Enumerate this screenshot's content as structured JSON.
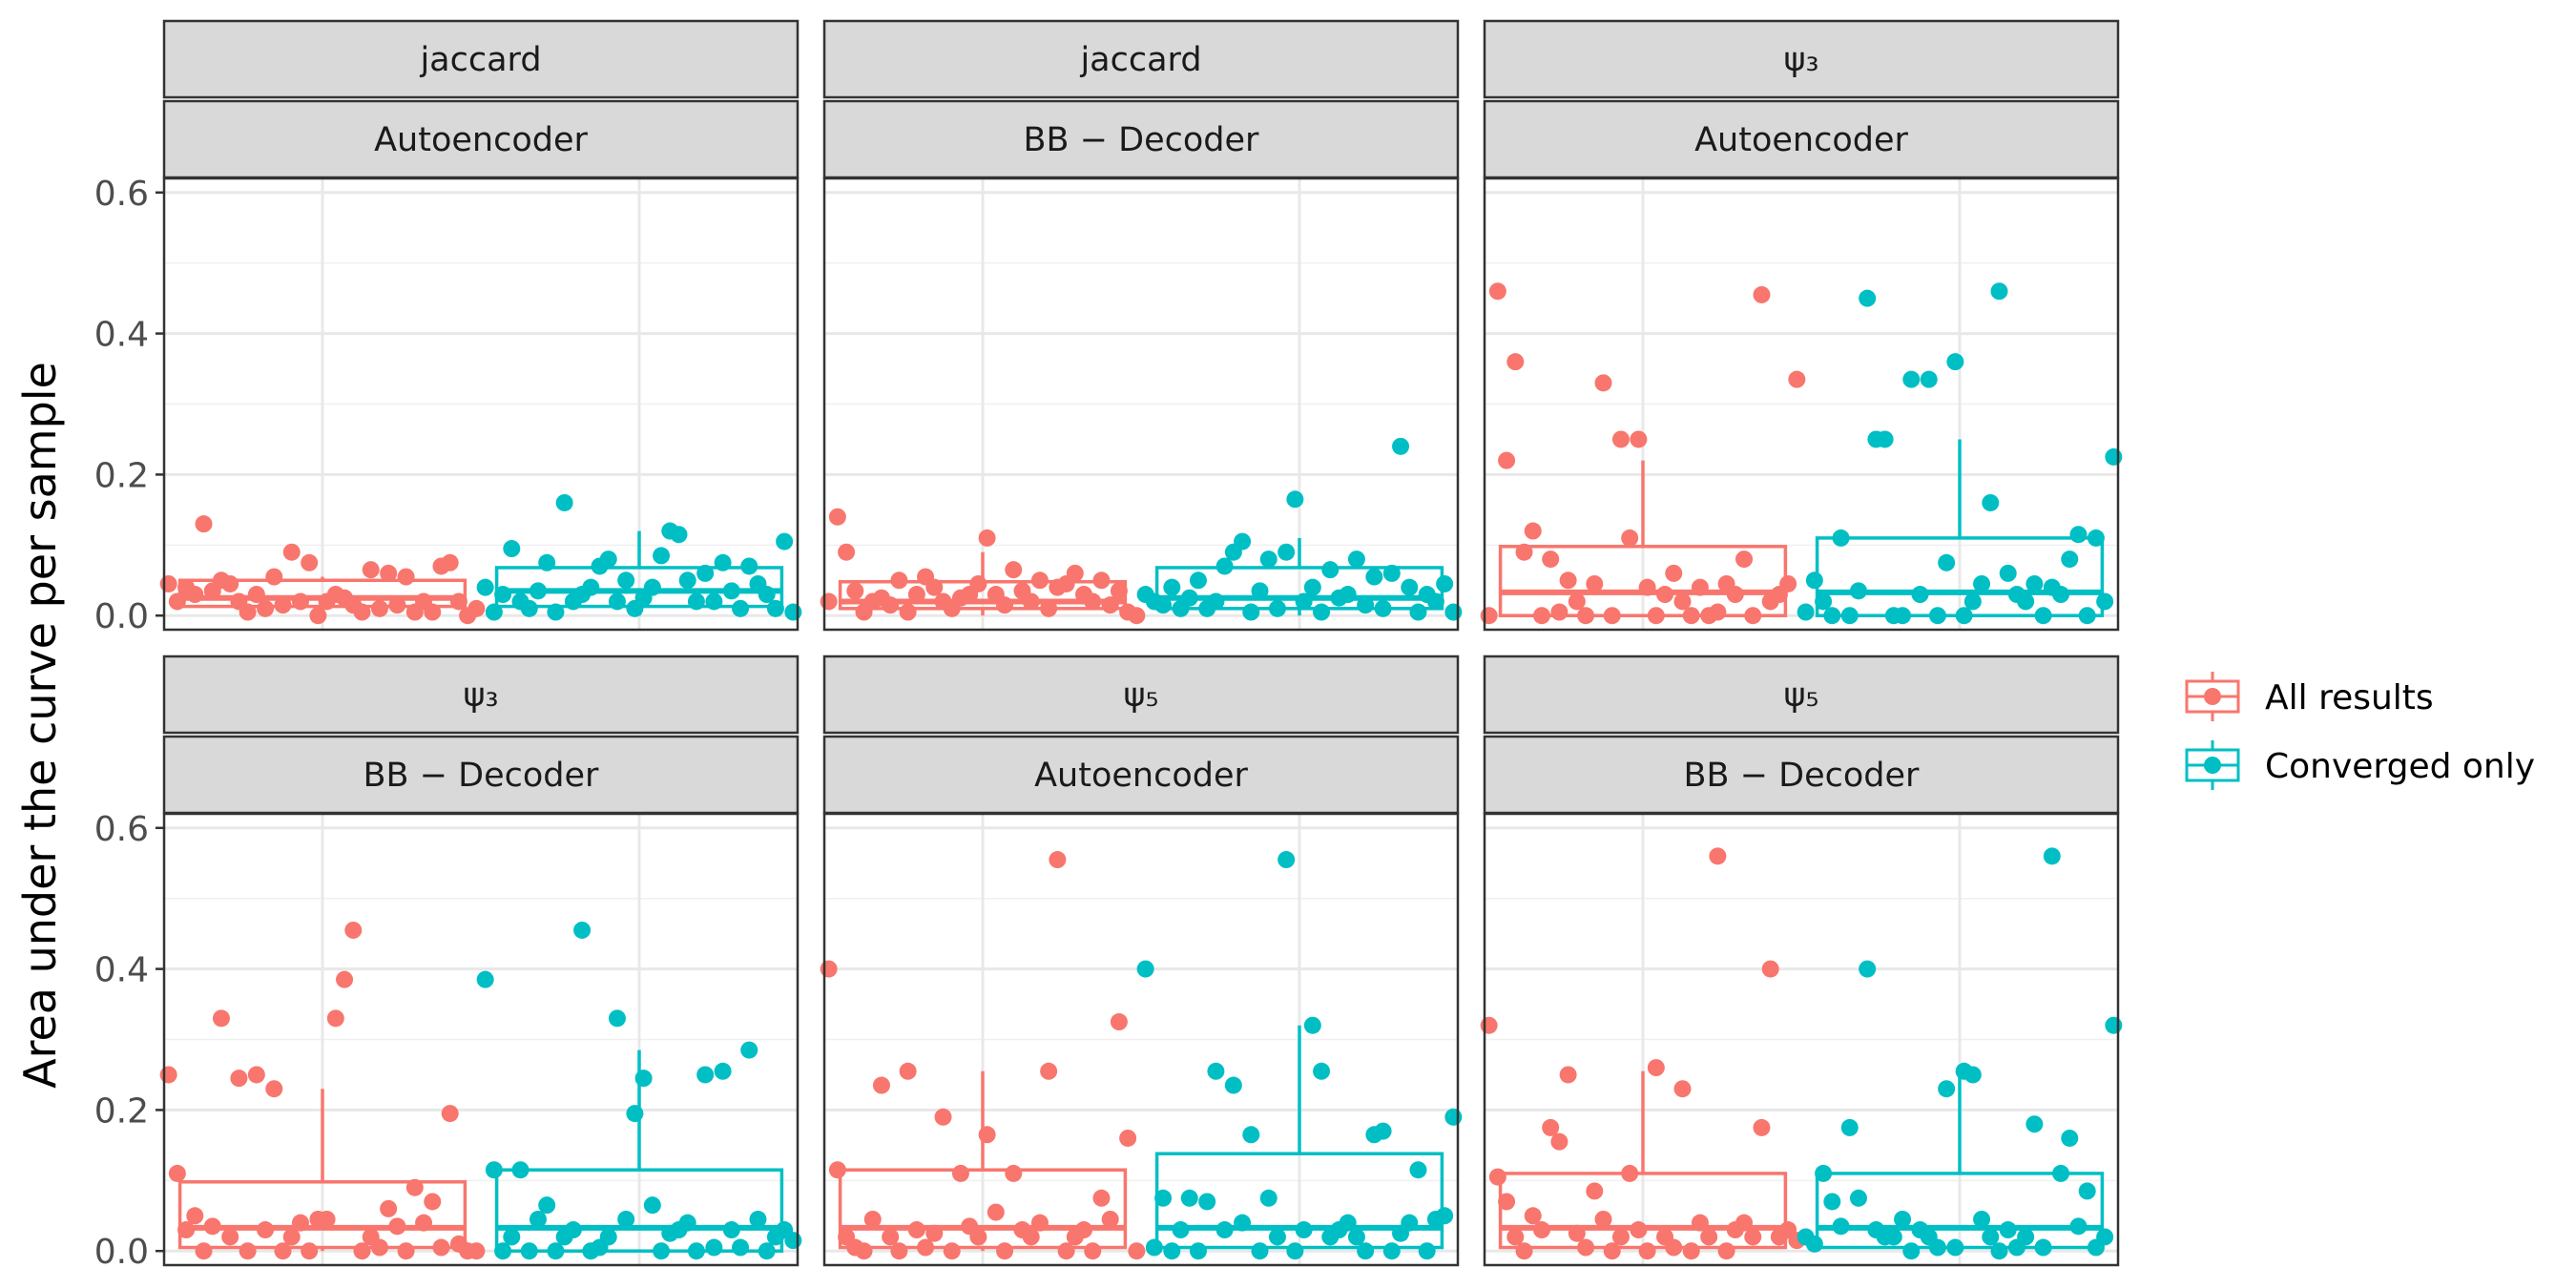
{
  "chart_data": {
    "type": "box",
    "ylabel": "Area under the curve per sample",
    "ylim": [
      -0.02,
      0.62
    ],
    "yticks": [
      "0.0",
      "0.2",
      "0.4",
      "0.6"
    ],
    "grid": true,
    "legend_position": "right",
    "legend": [
      {
        "name": "All results",
        "color": "#F8766D"
      },
      {
        "name": "Converged only",
        "color": "#00BFC4"
      }
    ],
    "panels": [
      {
        "strip1": "jaccard",
        "strip2": "Autoencoder",
        "series": [
          {
            "name": "All results",
            "box": {
              "min": 0.0,
              "q1": 0.013,
              "median": 0.025,
              "q3": 0.05,
              "max": 0.055
            },
            "points": [
              0.045,
              0.02,
              0.04,
              0.03,
              0.13,
              0.035,
              0.05,
              0.045,
              0.02,
              0.005,
              0.03,
              0.01,
              0.055,
              0.015,
              0.09,
              0.02,
              0.075,
              0.0,
              0.02,
              0.03,
              0.025,
              0.015,
              0.005,
              0.065,
              0.01,
              0.06,
              0.015,
              0.055,
              0.005,
              0.02,
              0.005,
              0.07,
              0.075,
              0.02,
              0.0,
              0.01
            ]
          },
          {
            "name": "Converged only",
            "box": {
              "min": 0.0,
              "q1": 0.013,
              "median": 0.035,
              "q3": 0.068,
              "max": 0.12
            },
            "points": [
              0.04,
              0.005,
              0.03,
              0.095,
              0.02,
              0.01,
              0.035,
              0.075,
              0.005,
              0.16,
              0.02,
              0.03,
              0.04,
              0.07,
              0.08,
              0.02,
              0.05,
              0.01,
              0.025,
              0.04,
              0.085,
              0.12,
              0.115,
              0.05,
              0.02,
              0.06,
              0.02,
              0.075,
              0.035,
              0.01,
              0.07,
              0.045,
              0.03,
              0.01,
              0.105,
              0.005
            ]
          }
        ]
      },
      {
        "strip1": "jaccard",
        "strip2": "BB − Decoder",
        "series": [
          {
            "name": "All results",
            "box": {
              "min": 0.0,
              "q1": 0.01,
              "median": 0.02,
              "q3": 0.048,
              "max": 0.09
            },
            "points": [
              0.02,
              0.14,
              0.09,
              0.035,
              0.005,
              0.02,
              0.025,
              0.015,
              0.05,
              0.005,
              0.03,
              0.055,
              0.04,
              0.02,
              0.01,
              0.025,
              0.03,
              0.045,
              0.11,
              0.03,
              0.015,
              0.065,
              0.035,
              0.02,
              0.05,
              0.01,
              0.04,
              0.045,
              0.06,
              0.03,
              0.02,
              0.05,
              0.015,
              0.035,
              0.005,
              0.0
            ]
          },
          {
            "name": "Converged only",
            "box": {
              "min": 0.0,
              "q1": 0.01,
              "median": 0.025,
              "q3": 0.068,
              "max": 0.11
            },
            "points": [
              0.03,
              0.02,
              0.015,
              0.04,
              0.01,
              0.025,
              0.05,
              0.01,
              0.02,
              0.07,
              0.09,
              0.105,
              0.005,
              0.035,
              0.08,
              0.01,
              0.09,
              0.165,
              0.02,
              0.04,
              0.005,
              0.065,
              0.025,
              0.03,
              0.08,
              0.015,
              0.055,
              0.01,
              0.06,
              0.24,
              0.04,
              0.005,
              0.03,
              0.02,
              0.045,
              0.005
            ]
          }
        ]
      },
      {
        "strip1": "ψ₃",
        "strip2": "Autoencoder",
        "series": [
          {
            "name": "All results",
            "box": {
              "min": 0.0,
              "q1": 0.0,
              "median": 0.033,
              "q3": 0.098,
              "max": 0.22
            },
            "points": [
              0.0,
              0.46,
              0.22,
              0.36,
              0.09,
              0.12,
              0.0,
              0.08,
              0.005,
              0.05,
              0.02,
              0.0,
              0.045,
              0.33,
              0.0,
              0.25,
              0.11,
              0.25,
              0.04,
              0.0,
              0.03,
              0.06,
              0.02,
              0.0,
              0.04,
              0.0,
              0.005,
              0.045,
              0.03,
              0.08,
              0.0,
              0.455,
              0.02,
              0.03,
              0.045,
              0.335
            ]
          },
          {
            "name": "Converged only",
            "box": {
              "min": 0.0,
              "q1": 0.0,
              "median": 0.033,
              "q3": 0.11,
              "max": 0.25
            },
            "points": [
              0.005,
              0.05,
              0.02,
              0.0,
              0.11,
              0.0,
              0.035,
              0.45,
              0.25,
              0.25,
              0.0,
              0.0,
              0.335,
              0.03,
              0.335,
              0.0,
              0.075,
              0.36,
              0.0,
              0.02,
              0.045,
              0.16,
              0.46,
              0.06,
              0.03,
              0.02,
              0.045,
              0.0,
              0.04,
              0.03,
              0.08,
              0.115,
              0.0,
              0.11,
              0.02,
              0.225
            ]
          }
        ]
      },
      {
        "strip1": "ψ₃",
        "strip2": "BB − Decoder",
        "series": [
          {
            "name": "All results",
            "box": {
              "min": 0.0,
              "q1": 0.005,
              "median": 0.033,
              "q3": 0.098,
              "max": 0.23
            },
            "points": [
              0.25,
              0.11,
              0.03,
              0.05,
              0.0,
              0.035,
              0.33,
              0.02,
              0.245,
              0.0,
              0.25,
              0.03,
              0.23,
              0.0,
              0.02,
              0.04,
              0.0,
              0.045,
              0.045,
              0.33,
              0.385,
              0.455,
              0.0,
              0.02,
              0.005,
              0.06,
              0.035,
              0.0,
              0.09,
              0.04,
              0.07,
              0.005,
              0.195,
              0.01,
              0.0,
              0.0
            ]
          },
          {
            "name": "Converged only",
            "box": {
              "min": 0.0,
              "q1": 0.0,
              "median": 0.033,
              "q3": 0.115,
              "max": 0.285
            },
            "points": [
              0.385,
              0.115,
              0.0,
              0.02,
              0.115,
              0.0,
              0.045,
              0.065,
              0.0,
              0.02,
              0.03,
              0.455,
              0.0,
              0.005,
              0.02,
              0.33,
              0.045,
              0.195,
              0.245,
              0.065,
              0.0,
              0.025,
              0.03,
              0.04,
              0.0,
              0.25,
              0.005,
              0.255,
              0.03,
              0.005,
              0.285,
              0.045,
              0.0,
              0.02,
              0.03,
              0.015
            ]
          }
        ]
      },
      {
        "strip1": "ψ₅",
        "strip2": "Autoencoder",
        "series": [
          {
            "name": "All results",
            "box": {
              "min": 0.0,
              "q1": 0.005,
              "median": 0.033,
              "q3": 0.115,
              "max": 0.255
            },
            "points": [
              0.4,
              0.115,
              0.02,
              0.005,
              0.0,
              0.045,
              0.235,
              0.02,
              0.0,
              0.255,
              0.03,
              0.005,
              0.025,
              0.19,
              0.0,
              0.11,
              0.035,
              0.02,
              0.165,
              0.055,
              0.0,
              0.11,
              0.03,
              0.02,
              0.04,
              0.255,
              0.555,
              0.0,
              0.02,
              0.03,
              0.0,
              0.075,
              0.045,
              0.325,
              0.16,
              0.0
            ]
          },
          {
            "name": "Converged only",
            "box": {
              "min": 0.0,
              "q1": 0.005,
              "median": 0.033,
              "q3": 0.138,
              "max": 0.32
            },
            "points": [
              0.4,
              0.005,
              0.075,
              0.0,
              0.03,
              0.075,
              0.0,
              0.07,
              0.255,
              0.03,
              0.235,
              0.04,
              0.165,
              0.0,
              0.075,
              0.02,
              0.555,
              0.0,
              0.03,
              0.32,
              0.255,
              0.02,
              0.03,
              0.04,
              0.02,
              0.0,
              0.165,
              0.17,
              0.0,
              0.025,
              0.04,
              0.115,
              0.0,
              0.045,
              0.05,
              0.19
            ]
          }
        ]
      },
      {
        "strip1": "ψ₅",
        "strip2": "BB − Decoder",
        "series": [
          {
            "name": "All results",
            "box": {
              "min": 0.0,
              "q1": 0.005,
              "median": 0.033,
              "q3": 0.11,
              "max": 0.255
            },
            "points": [
              0.32,
              0.105,
              0.07,
              0.02,
              0.0,
              0.05,
              0.03,
              0.175,
              0.155,
              0.25,
              0.025,
              0.005,
              0.085,
              0.045,
              0.0,
              0.02,
              0.11,
              0.03,
              0.0,
              0.26,
              0.02,
              0.005,
              0.23,
              0.0,
              0.04,
              0.02,
              0.56,
              0.0,
              0.03,
              0.04,
              0.02,
              0.175,
              0.4,
              0.02,
              0.03,
              0.015
            ]
          },
          {
            "name": "Converged only",
            "box": {
              "min": 0.0,
              "q1": 0.005,
              "median": 0.033,
              "q3": 0.11,
              "max": 0.255
            },
            "points": [
              0.02,
              0.01,
              0.11,
              0.07,
              0.035,
              0.175,
              0.075,
              0.4,
              0.03,
              0.02,
              0.02,
              0.045,
              0.0,
              0.03,
              0.02,
              0.005,
              0.23,
              0.005,
              0.255,
              0.25,
              0.045,
              0.02,
              0.0,
              0.03,
              0.005,
              0.02,
              0.18,
              0.005,
              0.56,
              0.11,
              0.16,
              0.035,
              0.085,
              0.005,
              0.02,
              0.32
            ]
          }
        ]
      }
    ]
  }
}
